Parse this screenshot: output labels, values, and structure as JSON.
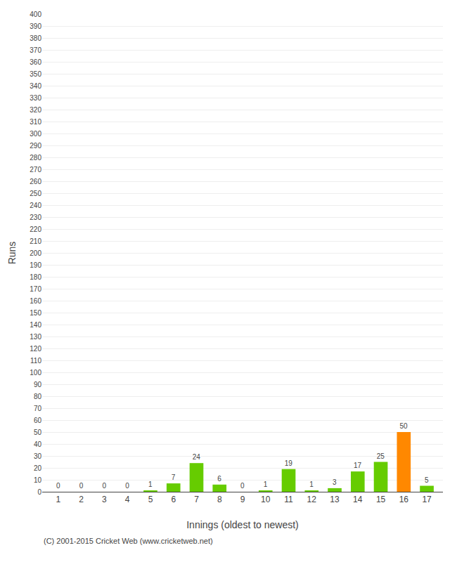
{
  "chart_data": {
    "type": "bar",
    "xlabel": "Innings (oldest to newest)",
    "ylabel": "Runs",
    "categories": [
      1,
      2,
      3,
      4,
      5,
      6,
      7,
      8,
      9,
      10,
      11,
      12,
      13,
      14,
      15,
      16,
      17
    ],
    "values": [
      0,
      0,
      0,
      0,
      1,
      7,
      24,
      6,
      0,
      1,
      19,
      1,
      3,
      17,
      25,
      50,
      5
    ],
    "colors": [
      "#66cc00",
      "#66cc00",
      "#66cc00",
      "#66cc00",
      "#66cc00",
      "#66cc00",
      "#66cc00",
      "#66cc00",
      "#66cc00",
      "#66cc00",
      "#66cc00",
      "#66cc00",
      "#66cc00",
      "#66cc00",
      "#66cc00",
      "#ff8800",
      "#66cc00"
    ],
    "ylim": [
      0,
      400
    ],
    "yticks": [
      0,
      10,
      20,
      30,
      40,
      50,
      60,
      70,
      80,
      90,
      100,
      110,
      120,
      130,
      140,
      150,
      160,
      170,
      180,
      190,
      200,
      210,
      220,
      230,
      240,
      250,
      260,
      270,
      280,
      290,
      300,
      310,
      320,
      330,
      340,
      350,
      360,
      370,
      380,
      390,
      400
    ],
    "grid": true,
    "data_labels": true,
    "annotations": [
      "(C) 2001-2015 Cricket Web (www.cricketweb.net)"
    ]
  }
}
